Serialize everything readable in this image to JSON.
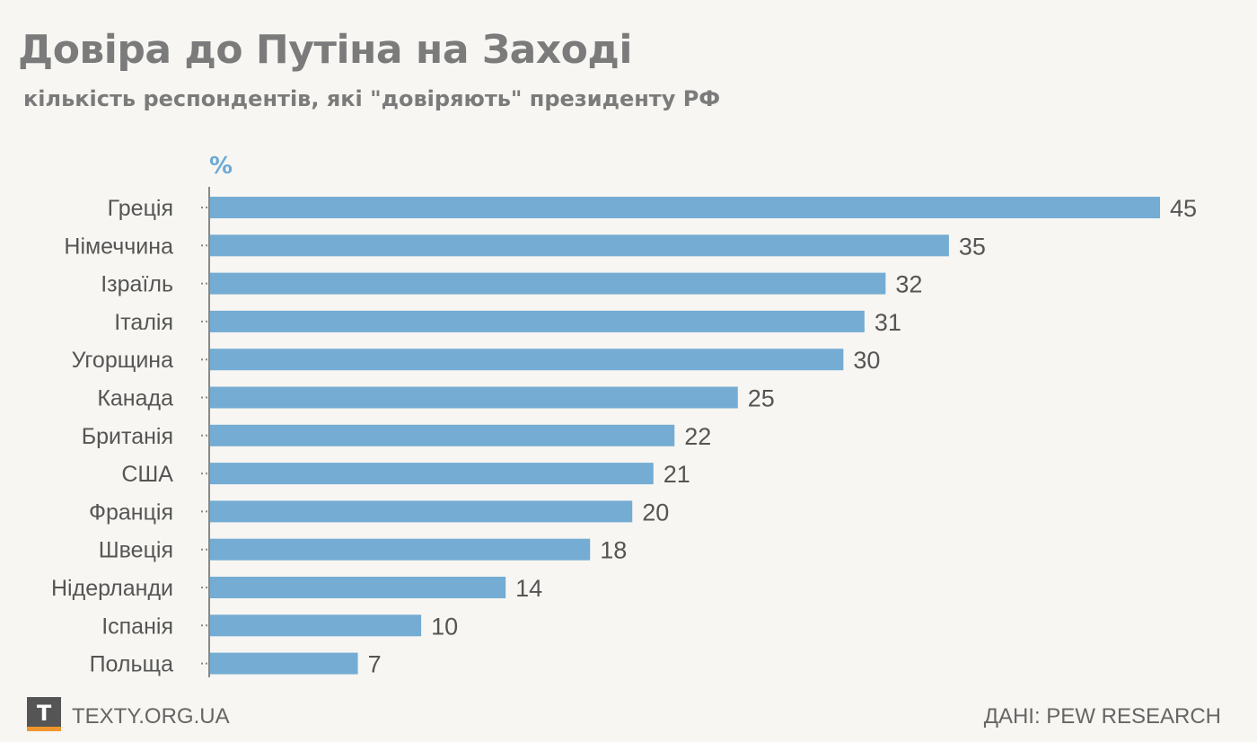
{
  "title": "Довіра до Путіна на Заході",
  "subtitle": "кількість респондентів, які \"довіряють\" президенту РФ",
  "chart_data": {
    "type": "bar",
    "orientation": "horizontal",
    "title": "Довіра до Путіна на Заході",
    "subtitle": "кількість респондентів, які \"довіряють\" президенту РФ",
    "unit_label": "%",
    "categories": [
      "Греція",
      "Німеччина",
      "Ізраїль",
      "Італія",
      "Угорщина",
      "Канада",
      "Британія",
      "США",
      "Франція",
      "Швеція",
      "Нідерланди",
      "Іспанія",
      "Польща"
    ],
    "values": [
      45,
      35,
      32,
      31,
      30,
      25,
      22,
      21,
      20,
      18,
      14,
      10,
      7
    ],
    "xlim": [
      0,
      45
    ],
    "grid": false,
    "bar_color": "#74acd3",
    "data_labels": true
  },
  "footer": {
    "logo_letter": "T",
    "site": "TEXTY.ORG.UA",
    "source": "ДАНІ: PEW RESEARCH"
  },
  "colors": {
    "background": "#f7f6f2",
    "bar": "#74acd3",
    "title_text": "#7b7b7b",
    "label_text": "#555555",
    "unit_accent": "#6aaad6",
    "logo_bg": "#555555",
    "logo_accent": "#f0962d"
  }
}
